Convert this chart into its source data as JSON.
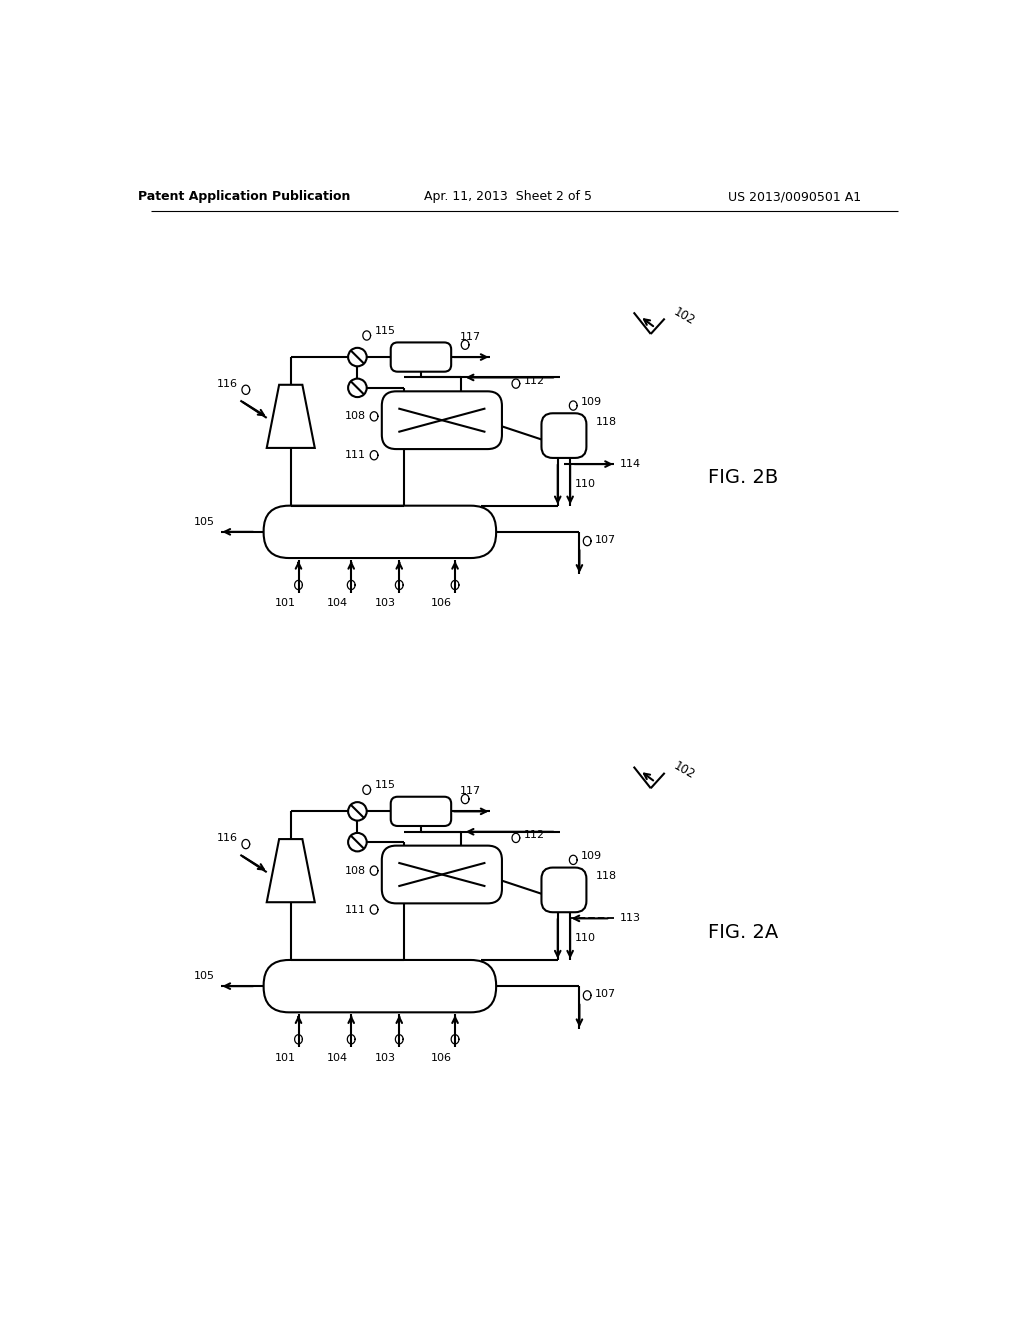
{
  "header_left": "Patent Application Publication",
  "header_center": "Apr. 11, 2013  Sheet 2 of 5",
  "header_right": "US 2013/0090501 A1",
  "bg": "#ffffff",
  "lc": "#000000",
  "lw": 1.5,
  "fig2b_yo": 110,
  "fig2a_yo": 700
}
